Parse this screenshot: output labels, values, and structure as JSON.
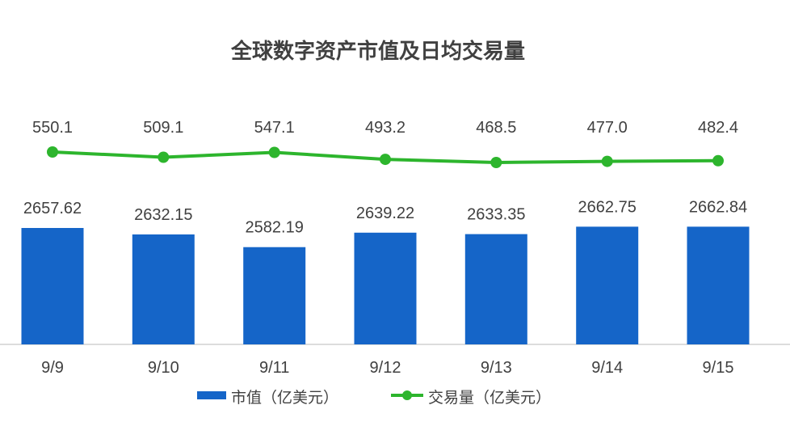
{
  "chart_data": {
    "type": "bar+line",
    "title": "全球数字资产市值及日均交易量",
    "categories": [
      "9/9",
      "9/10",
      "9/11",
      "9/12",
      "9/13",
      "9/14",
      "9/15"
    ],
    "series": [
      {
        "name": "市值（亿美元）",
        "type": "bar",
        "color": "#1565c8",
        "values": [
          2657.62,
          2632.15,
          2582.19,
          2639.22,
          2633.35,
          2662.75,
          2662.84
        ],
        "labels": [
          "2657.62",
          "2632.15",
          "2582.19",
          "2639.22",
          "2633.35",
          "2662.75",
          "2662.84"
        ]
      },
      {
        "name": "交易量（亿美元）",
        "type": "line",
        "color": "#2db52d",
        "values": [
          550.1,
          509.1,
          547.1,
          493.2,
          468.5,
          477.0,
          482.4
        ],
        "labels": [
          "550.1",
          "509.1",
          "547.1",
          "493.2",
          "468.5",
          "477.0",
          "482.4"
        ]
      }
    ],
    "legend_position": "bottom",
    "grid": false
  }
}
